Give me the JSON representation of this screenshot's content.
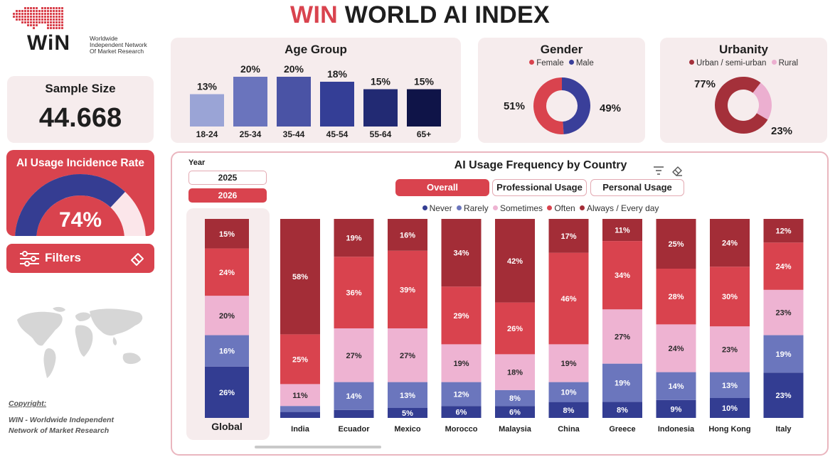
{
  "header": {
    "title_red": "WIN",
    "title_dark": "WORLD AI INDEX"
  },
  "logo": {
    "mark": "WiN",
    "line1": "Worldwide",
    "line2": "Independent Network",
    "line3": "Of Market Research"
  },
  "sample": {
    "label": "Sample Size",
    "value": "44.668"
  },
  "usage_rate": {
    "label": "AI Usage Incidence Rate",
    "value": "74%",
    "fraction": 0.74
  },
  "filters": {
    "label": "Filters"
  },
  "copyright": {
    "label": "Copyright:",
    "line1": "WIN - Worldwide Independent",
    "line2": "Network of Market Research"
  },
  "age": {
    "title": "Age Group",
    "categories": [
      "18-24",
      "25-34",
      "35-44",
      "45-54",
      "55-64",
      "65+"
    ],
    "value_labels": [
      "13%",
      "20%",
      "20%",
      "18%",
      "15%",
      "15%"
    ],
    "values": [
      13,
      20,
      20,
      18,
      15,
      15
    ],
    "colors": [
      "#9aa4d6",
      "#6a74bd",
      "#4a53a5",
      "#343e96",
      "#222a73",
      "#0f1448"
    ]
  },
  "gender": {
    "title": "Gender",
    "legend": [
      "Female",
      "Male"
    ],
    "values": [
      51,
      49
    ],
    "labels": [
      "51%",
      "49%"
    ],
    "colors": [
      "#d9434e",
      "#3a3f9a"
    ]
  },
  "urbanity": {
    "title": "Urbanity",
    "legend": [
      "Urban / semi-urban",
      "Rural"
    ],
    "values": [
      77,
      23
    ],
    "labels": [
      "77%",
      "23%"
    ],
    "colors": [
      "#a4303a",
      "#ecafd0"
    ]
  },
  "year": {
    "label": "Year",
    "options": [
      "2025",
      "2026"
    ],
    "selected": "2026"
  },
  "freq": {
    "title": "AI Usage Frequency by Country",
    "tabs": [
      "Overall",
      "Professional Usage",
      "Personal Usage"
    ],
    "active_tab": "Overall",
    "legend": [
      "Never",
      "Rarely",
      "Sometimes",
      "Often",
      "Always / Every day"
    ],
    "colors": [
      "#333d92",
      "#6b76bd",
      "#eeb3d2",
      "#d9434e",
      "#a32d37"
    ],
    "global": {
      "name": "Global",
      "values": [
        26,
        16,
        20,
        24,
        15
      ],
      "labels": [
        "26%",
        "16%",
        "20%",
        "24%",
        "15%"
      ]
    },
    "countries": [
      {
        "name": "India",
        "values": [
          3,
          3,
          11,
          25,
          58
        ],
        "labels": [
          "",
          "",
          "11%",
          "25%",
          "58%"
        ]
      },
      {
        "name": "Ecuador",
        "values": [
          4,
          14,
          27,
          36,
          19
        ],
        "labels": [
          "",
          "14%",
          "27%",
          "36%",
          "19%"
        ]
      },
      {
        "name": "Mexico",
        "values": [
          5,
          13,
          27,
          39,
          16
        ],
        "labels": [
          "5%",
          "13%",
          "27%",
          "39%",
          "16%"
        ]
      },
      {
        "name": "Morocco",
        "values": [
          6,
          12,
          19,
          29,
          34
        ],
        "labels": [
          "6%",
          "12%",
          "19%",
          "29%",
          "34%"
        ]
      },
      {
        "name": "Malaysia",
        "values": [
          6,
          8,
          18,
          26,
          42
        ],
        "labels": [
          "6%",
          "8%",
          "18%",
          "26%",
          "42%"
        ]
      },
      {
        "name": "China",
        "values": [
          8,
          10,
          19,
          46,
          17
        ],
        "labels": [
          "8%",
          "10%",
          "19%",
          "46%",
          "17%"
        ]
      },
      {
        "name": "Greece",
        "values": [
          8,
          19,
          27,
          34,
          11
        ],
        "labels": [
          "8%",
          "19%",
          "27%",
          "34%",
          "11%"
        ]
      },
      {
        "name": "Indonesia",
        "values": [
          9,
          14,
          24,
          28,
          25
        ],
        "labels": [
          "9%",
          "14%",
          "24%",
          "28%",
          "25%"
        ]
      },
      {
        "name": "Hong Kong",
        "values": [
          10,
          13,
          23,
          30,
          24
        ],
        "labels": [
          "10%",
          "13%",
          "23%",
          "30%",
          "24%"
        ]
      },
      {
        "name": "Italy",
        "values": [
          23,
          19,
          23,
          24,
          12
        ],
        "labels": [
          "23%",
          "19%",
          "23%",
          "24%",
          "12%"
        ]
      }
    ]
  }
}
